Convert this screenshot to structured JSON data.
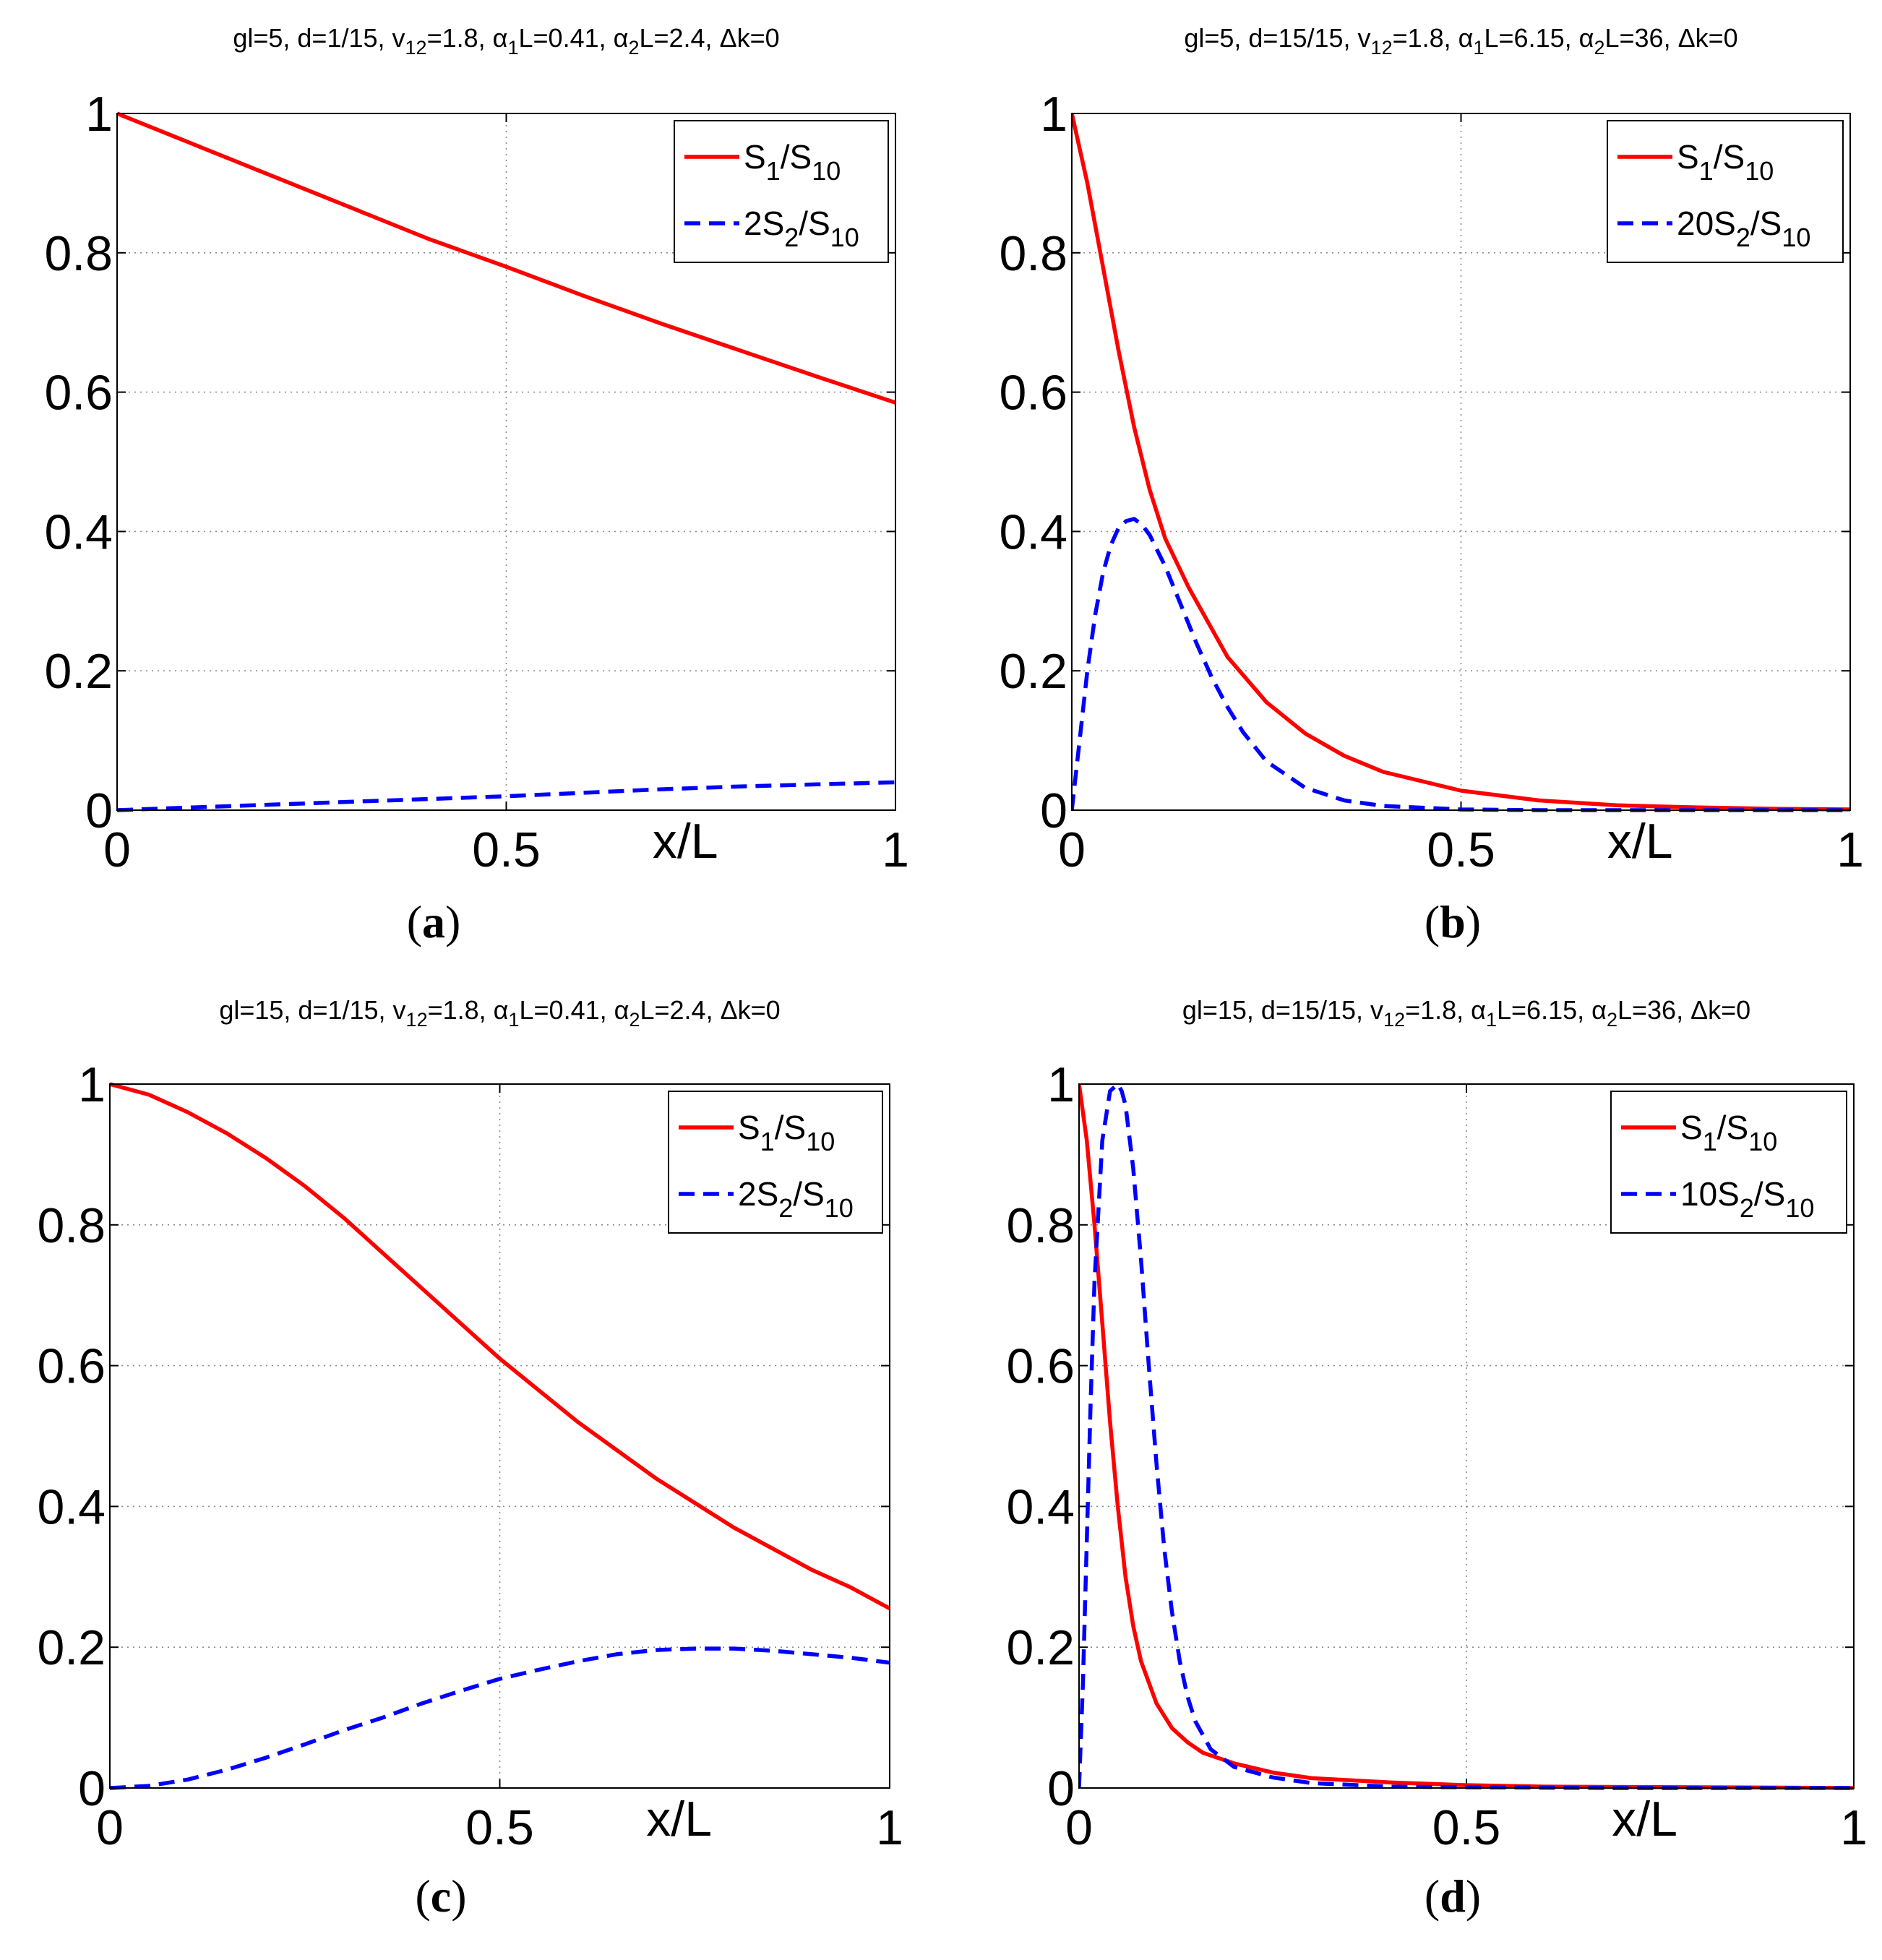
{
  "chart_data": [
    {
      "type": "line",
      "panel": "a",
      "caption_letter": "a",
      "title": {
        "p1": "gl=5, d=1/15, v",
        "sub_v": "12",
        "p2": "=1.8, α",
        "sub_a1": "1",
        "p3": "L=0.41, α",
        "sub_a2": "2",
        "p4": "L=2.4, Δk=0"
      },
      "xlabel": "x/L",
      "xlim": [
        0,
        1
      ],
      "ylim": [
        0,
        1
      ],
      "xticks": [
        0,
        0.5,
        1
      ],
      "xtick_labels": [
        "0",
        "0.5",
        "1"
      ],
      "yticks": [
        0,
        0.2,
        0.4,
        0.6,
        0.8,
        1
      ],
      "ytick_labels": [
        "0",
        "0.2",
        "0.4",
        "0.6",
        "0.8",
        "1"
      ],
      "legend_position": "top-right",
      "series": [
        {
          "name": "S1/S10",
          "label": {
            "pre": "S",
            "sub1": "1",
            "mid": "/S",
            "sub2": "10"
          },
          "style": "solid",
          "color": "#ff0000",
          "x": [
            0,
            0.1,
            0.2,
            0.3,
            0.4,
            0.5,
            0.6,
            0.7,
            0.8,
            0.9,
            1.0
          ],
          "y": [
            1.0,
            0.955,
            0.91,
            0.865,
            0.82,
            0.78,
            0.738,
            0.698,
            0.66,
            0.622,
            0.585
          ]
        },
        {
          "name": "2S2/S10",
          "label": {
            "pre": "2S",
            "sub1": "2",
            "mid": "/S",
            "sub2": "10"
          },
          "style": "dashed",
          "color": "#0000ff",
          "x": [
            0,
            0.1,
            0.2,
            0.3,
            0.4,
            0.5,
            0.6,
            0.7,
            0.8,
            0.9,
            1.0
          ],
          "y": [
            0,
            0.004,
            0.008,
            0.012,
            0.016,
            0.02,
            0.025,
            0.03,
            0.034,
            0.037,
            0.04
          ]
        }
      ]
    },
    {
      "type": "line",
      "panel": "b",
      "caption_letter": "b",
      "title": {
        "p1": "gl=5, d=15/15, v",
        "sub_v": "12",
        "p2": "=1.8, α",
        "sub_a1": "1",
        "p3": "L=6.15, α",
        "sub_a2": "2",
        "p4": "L=36, Δk=0"
      },
      "xlabel": "x/L",
      "xlim": [
        0,
        1
      ],
      "ylim": [
        0,
        1
      ],
      "xticks": [
        0,
        0.5,
        1
      ],
      "xtick_labels": [
        "0",
        "0.5",
        "1"
      ],
      "yticks": [
        0,
        0.2,
        0.4,
        0.6,
        0.8,
        1
      ],
      "ytick_labels": [
        "0",
        "0.2",
        "0.4",
        "0.6",
        "0.8",
        "1"
      ],
      "legend_position": "top-right",
      "series": [
        {
          "name": "S1/S10",
          "label": {
            "pre": "S",
            "sub1": "1",
            "mid": "/S",
            "sub2": "10"
          },
          "style": "solid",
          "color": "#ff0000",
          "x": [
            0,
            0.02,
            0.04,
            0.06,
            0.08,
            0.1,
            0.12,
            0.15,
            0.2,
            0.25,
            0.3,
            0.35,
            0.4,
            0.5,
            0.6,
            0.7,
            0.8,
            0.9,
            1.0
          ],
          "y": [
            1.0,
            0.9,
            0.78,
            0.66,
            0.55,
            0.46,
            0.39,
            0.32,
            0.22,
            0.155,
            0.11,
            0.078,
            0.055,
            0.028,
            0.014,
            0.007,
            0.004,
            0.002,
            0.001
          ]
        },
        {
          "name": "20S2/S10",
          "label": {
            "pre": "20S",
            "sub1": "2",
            "mid": "/S",
            "sub2": "10"
          },
          "style": "dashed",
          "color": "#0000ff",
          "x": [
            0,
            0.01,
            0.02,
            0.03,
            0.04,
            0.05,
            0.06,
            0.07,
            0.08,
            0.09,
            0.1,
            0.12,
            0.14,
            0.16,
            0.18,
            0.2,
            0.22,
            0.25,
            0.3,
            0.35,
            0.4,
            0.5,
            0.6,
            0.8,
            1.0
          ],
          "y": [
            0,
            0.1,
            0.2,
            0.28,
            0.34,
            0.38,
            0.405,
            0.415,
            0.418,
            0.41,
            0.395,
            0.35,
            0.295,
            0.24,
            0.19,
            0.148,
            0.112,
            0.07,
            0.032,
            0.014,
            0.006,
            0.001,
            0,
            0,
            0
          ]
        }
      ]
    },
    {
      "type": "line",
      "panel": "c",
      "caption_letter": "c",
      "title": {
        "p1": "gl=15, d=1/15, v",
        "sub_v": "12",
        "p2": "=1.8, α",
        "sub_a1": "1",
        "p3": "L=0.41, α",
        "sub_a2": "2",
        "p4": "L=2.4, Δk=0"
      },
      "xlabel": "x/L",
      "xlim": [
        0,
        1
      ],
      "ylim": [
        0,
        1
      ],
      "xticks": [
        0,
        0.5,
        1
      ],
      "xtick_labels": [
        "0",
        "0.5",
        "1"
      ],
      "yticks": [
        0,
        0.2,
        0.4,
        0.6,
        0.8,
        1
      ],
      "ytick_labels": [
        "0",
        "0.2",
        "0.4",
        "0.6",
        "0.8",
        "1"
      ],
      "legend_position": "top-right",
      "series": [
        {
          "name": "S1/S10",
          "label": {
            "pre": "S",
            "sub1": "1",
            "mid": "/S",
            "sub2": "10"
          },
          "style": "solid",
          "color": "#ff0000",
          "x": [
            0,
            0.05,
            0.1,
            0.15,
            0.2,
            0.25,
            0.3,
            0.35,
            0.4,
            0.45,
            0.5,
            0.55,
            0.6,
            0.65,
            0.7,
            0.75,
            0.8,
            0.85,
            0.9,
            0.95,
            1.0
          ],
          "y": [
            1.0,
            0.985,
            0.96,
            0.93,
            0.895,
            0.855,
            0.81,
            0.76,
            0.71,
            0.66,
            0.61,
            0.565,
            0.52,
            0.48,
            0.44,
            0.405,
            0.37,
            0.34,
            0.31,
            0.285,
            0.255
          ]
        },
        {
          "name": "2S2/S10",
          "label": {
            "pre": "2S",
            "sub1": "2",
            "mid": "/S",
            "sub2": "10"
          },
          "style": "dashed",
          "color": "#0000ff",
          "x": [
            0,
            0.05,
            0.1,
            0.15,
            0.2,
            0.25,
            0.3,
            0.35,
            0.4,
            0.45,
            0.5,
            0.55,
            0.6,
            0.65,
            0.7,
            0.75,
            0.8,
            0.85,
            0.9,
            0.95,
            1.0
          ],
          "y": [
            0,
            0.003,
            0.012,
            0.026,
            0.043,
            0.062,
            0.082,
            0.1,
            0.12,
            0.138,
            0.155,
            0.168,
            0.18,
            0.19,
            0.196,
            0.198,
            0.198,
            0.195,
            0.19,
            0.185,
            0.178
          ]
        }
      ]
    },
    {
      "type": "line",
      "panel": "d",
      "caption_letter": "d",
      "title": {
        "p1": "gl=15, d=15/15, v",
        "sub_v": "12",
        "p2": "=1.8, α",
        "sub_a1": "1",
        "p3": "L=6.15, α",
        "sub_a2": "2",
        "p4": "L=36, Δk=0"
      },
      "xlabel": "x/L",
      "xlim": [
        0,
        1
      ],
      "ylim": [
        0,
        1
      ],
      "xticks": [
        0,
        0.5,
        1
      ],
      "xtick_labels": [
        "0",
        "0.5",
        "1"
      ],
      "yticks": [
        0,
        0.2,
        0.4,
        0.6,
        0.8,
        1
      ],
      "ytick_labels": [
        "0",
        "0.2",
        "0.4",
        "0.6",
        "0.8",
        "1"
      ],
      "legend_position": "top-right",
      "series": [
        {
          "name": "S1/S10",
          "label": {
            "pre": "S",
            "sub1": "1",
            "mid": "/S",
            "sub2": "10"
          },
          "style": "solid",
          "color": "#ff0000",
          "x": [
            0,
            0.01,
            0.02,
            0.03,
            0.04,
            0.05,
            0.06,
            0.07,
            0.08,
            0.1,
            0.12,
            0.14,
            0.16,
            0.2,
            0.25,
            0.3,
            0.4,
            0.5,
            0.6,
            0.8,
            1.0
          ],
          "y": [
            1.0,
            0.92,
            0.8,
            0.66,
            0.52,
            0.4,
            0.3,
            0.23,
            0.18,
            0.12,
            0.085,
            0.065,
            0.05,
            0.035,
            0.022,
            0.014,
            0.008,
            0.004,
            0.002,
            0.001,
            0
          ]
        },
        {
          "name": "10S2/S10",
          "label": {
            "pre": "10S",
            "sub1": "2",
            "mid": "/S",
            "sub2": "10"
          },
          "style": "dashed",
          "color": "#0000ff",
          "x": [
            0,
            0.005,
            0.01,
            0.015,
            0.02,
            0.03,
            0.04,
            0.05,
            0.055,
            0.06,
            0.07,
            0.08,
            0.09,
            0.1,
            0.11,
            0.12,
            0.13,
            0.14,
            0.15,
            0.17,
            0.2,
            0.25,
            0.3,
            0.4,
            0.5,
            0.7,
            1.0
          ],
          "y": [
            0,
            0.15,
            0.35,
            0.55,
            0.72,
            0.92,
            0.99,
            1.0,
            0.99,
            0.97,
            0.88,
            0.75,
            0.6,
            0.46,
            0.34,
            0.25,
            0.18,
            0.13,
            0.095,
            0.055,
            0.03,
            0.015,
            0.007,
            0.002,
            0.001,
            0,
            0
          ]
        }
      ]
    }
  ]
}
